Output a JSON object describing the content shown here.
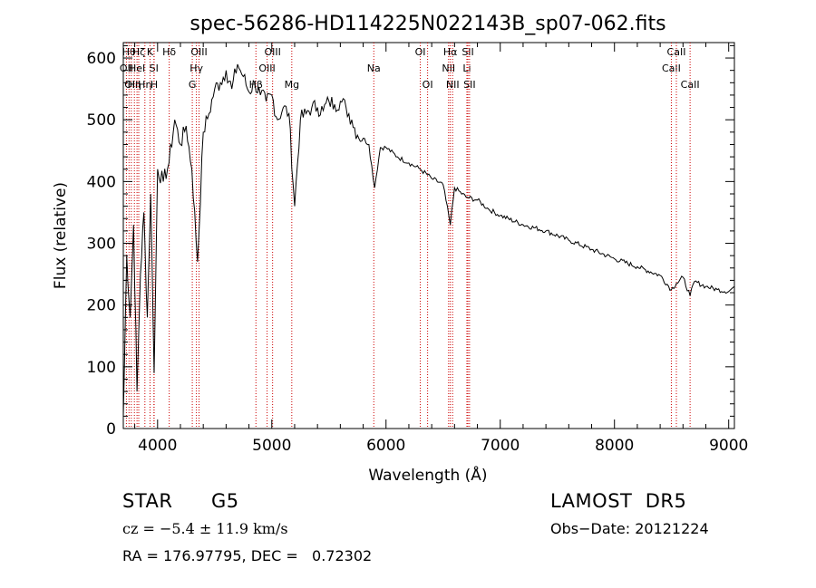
{
  "chart_data": {
    "type": "line",
    "title": "spec-56286-HD114225N022143B_sp07-062.fits",
    "xlabel": "Wavelength (Å)",
    "ylabel": "Flux (relative)",
    "xlim": [
      3700,
      9050
    ],
    "ylim": [
      0,
      625
    ],
    "xticks": [
      4000,
      5000,
      6000,
      7000,
      8000,
      9000
    ],
    "yticks": [
      0,
      100,
      200,
      300,
      400,
      500,
      600
    ],
    "grid": false,
    "line_color": "#000000",
    "marker_color": "#cc0000",
    "series": [
      {
        "x": [
          3700,
          3730,
          3760,
          3790,
          3820,
          3850,
          3880,
          3910,
          3940,
          3970,
          4000,
          4050,
          4100,
          4150,
          4200,
          4250,
          4300,
          4350,
          4400,
          4450,
          4500,
          4550,
          4600,
          4650,
          4700,
          4750,
          4800,
          4850,
          4900,
          4950,
          5000,
          5050,
          5100,
          5150,
          5200,
          5250,
          5300,
          5350,
          5400,
          5450,
          5500,
          5550,
          5600,
          5650,
          5700,
          5750,
          5800,
          5850,
          5900,
          5950,
          6000,
          6100,
          6200,
          6300,
          6400,
          6500,
          6563,
          6600,
          6700,
          6800,
          6900,
          7000,
          7200,
          7400,
          7600,
          7800,
          8000,
          8200,
          8400,
          8498,
          8542,
          8600,
          8662,
          8700,
          8800,
          8900,
          9000,
          9050
        ],
        "y": [
          20,
          280,
          180,
          330,
          60,
          250,
          350,
          180,
          380,
          90,
          420,
          400,
          430,
          500,
          460,
          490,
          420,
          270,
          480,
          510,
          550,
          560,
          580,
          550,
          590,
          570,
          545,
          560,
          540,
          530,
          540,
          500,
          520,
          510,
          360,
          500,
          510,
          520,
          520,
          515,
          530,
          525,
          530,
          520,
          500,
          475,
          470,
          460,
          390,
          455,
          455,
          440,
          430,
          420,
          405,
          395,
          330,
          390,
          375,
          370,
          355,
          345,
          330,
          320,
          305,
          290,
          275,
          262,
          248,
          225,
          235,
          245,
          215,
          238,
          230,
          225,
          222,
          230
        ]
      }
    ],
    "lines": [
      {
        "x": 3750,
        "label": "Hθ",
        "row": 0
      },
      {
        "x": 3727,
        "label": "OII",
        "row": 1
      },
      {
        "x": 3770,
        "label": "OII",
        "row": 2
      },
      {
        "x": 3797,
        "label": "Hη",
        "row": 2
      },
      {
        "x": 3835,
        "label": "Hζ",
        "row": 0
      },
      {
        "x": 3820,
        "label": "HeI",
        "row": 1
      },
      {
        "x": 3889,
        "label": "Hη",
        "row": 2
      },
      {
        "x": 3934,
        "label": "K",
        "row": 0
      },
      {
        "x": 3968,
        "label": "SI",
        "row": 1
      },
      {
        "x": 3970,
        "label": "H",
        "row": 2
      },
      {
        "x": 4102,
        "label": "Hδ",
        "row": 0
      },
      {
        "x": 4340,
        "label": "Hγ",
        "row": 1
      },
      {
        "x": 4304,
        "label": "G",
        "row": 2
      },
      {
        "x": 4363,
        "label": "OIII",
        "row": 0
      },
      {
        "x": 4861,
        "label": "Hβ",
        "row": 2
      },
      {
        "x": 4959,
        "label": "OIII",
        "row": 1
      },
      {
        "x": 5007,
        "label": "OIII",
        "row": 0
      },
      {
        "x": 5175,
        "label": "Mg",
        "row": 2
      },
      {
        "x": 5893,
        "label": "Na",
        "row": 1
      },
      {
        "x": 6300,
        "label": "OI",
        "row": 0
      },
      {
        "x": 6364,
        "label": "OI",
        "row": 2
      },
      {
        "x": 6548,
        "label": "NII",
        "row": 1
      },
      {
        "x": 6563,
        "label": "Hα",
        "row": 0
      },
      {
        "x": 6583,
        "label": "NII",
        "row": 2
      },
      {
        "x": 6708,
        "label": "Li",
        "row": 1
      },
      {
        "x": 6717,
        "label": "SII",
        "row": 0
      },
      {
        "x": 6731,
        "label": "SII",
        "row": 2
      },
      {
        "x": 8498,
        "label": "CaII",
        "row": 1
      },
      {
        "x": 8542,
        "label": "CaII",
        "row": 0
      },
      {
        "x": 8662,
        "label": "CaII",
        "row": 2
      }
    ]
  },
  "info": {
    "class": "STAR",
    "subclass": "G5",
    "survey": "LAMOST  DR5",
    "cz": "cz = −5.4 ± 11.9 km/s",
    "obs_date": "Obs−Date: 20121224",
    "coords": "RA = 176.97795, DEC =   0.72302"
  }
}
